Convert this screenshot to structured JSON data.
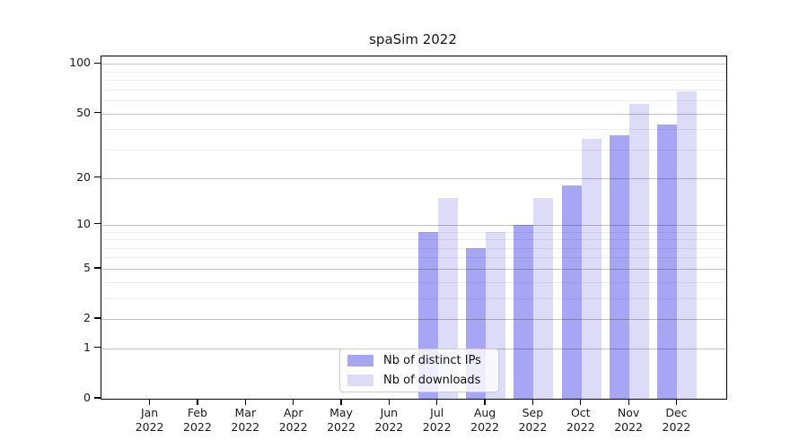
{
  "chart_data": {
    "type": "bar",
    "title": "spaSim 2022",
    "categories": [
      "Jan",
      "Feb",
      "Mar",
      "Apr",
      "May",
      "Jun",
      "Jul",
      "Aug",
      "Sep",
      "Oct",
      "Nov",
      "Dec"
    ],
    "category_year": "2022",
    "series": [
      {
        "name": "Nb of distinct IPs",
        "color": "#a6a6f4",
        "values": [
          0,
          0,
          0,
          0,
          0,
          0,
          9,
          7,
          10,
          18,
          37,
          43
        ]
      },
      {
        "name": "Nb of downloads",
        "color": "#dcdcf9",
        "values": [
          0,
          0,
          0,
          0,
          0,
          0,
          15,
          9,
          15,
          35,
          57,
          68
        ]
      }
    ],
    "yscale": "log1p",
    "ylim": [
      0,
      110
    ],
    "yticks": [
      0,
      1,
      2,
      5,
      10,
      20,
      50,
      100
    ],
    "minor_gridlines": [
      3,
      4,
      6,
      7,
      8,
      9,
      30,
      40,
      60,
      70,
      80,
      90
    ],
    "grid": true,
    "legend_position": "bottom-center"
  }
}
